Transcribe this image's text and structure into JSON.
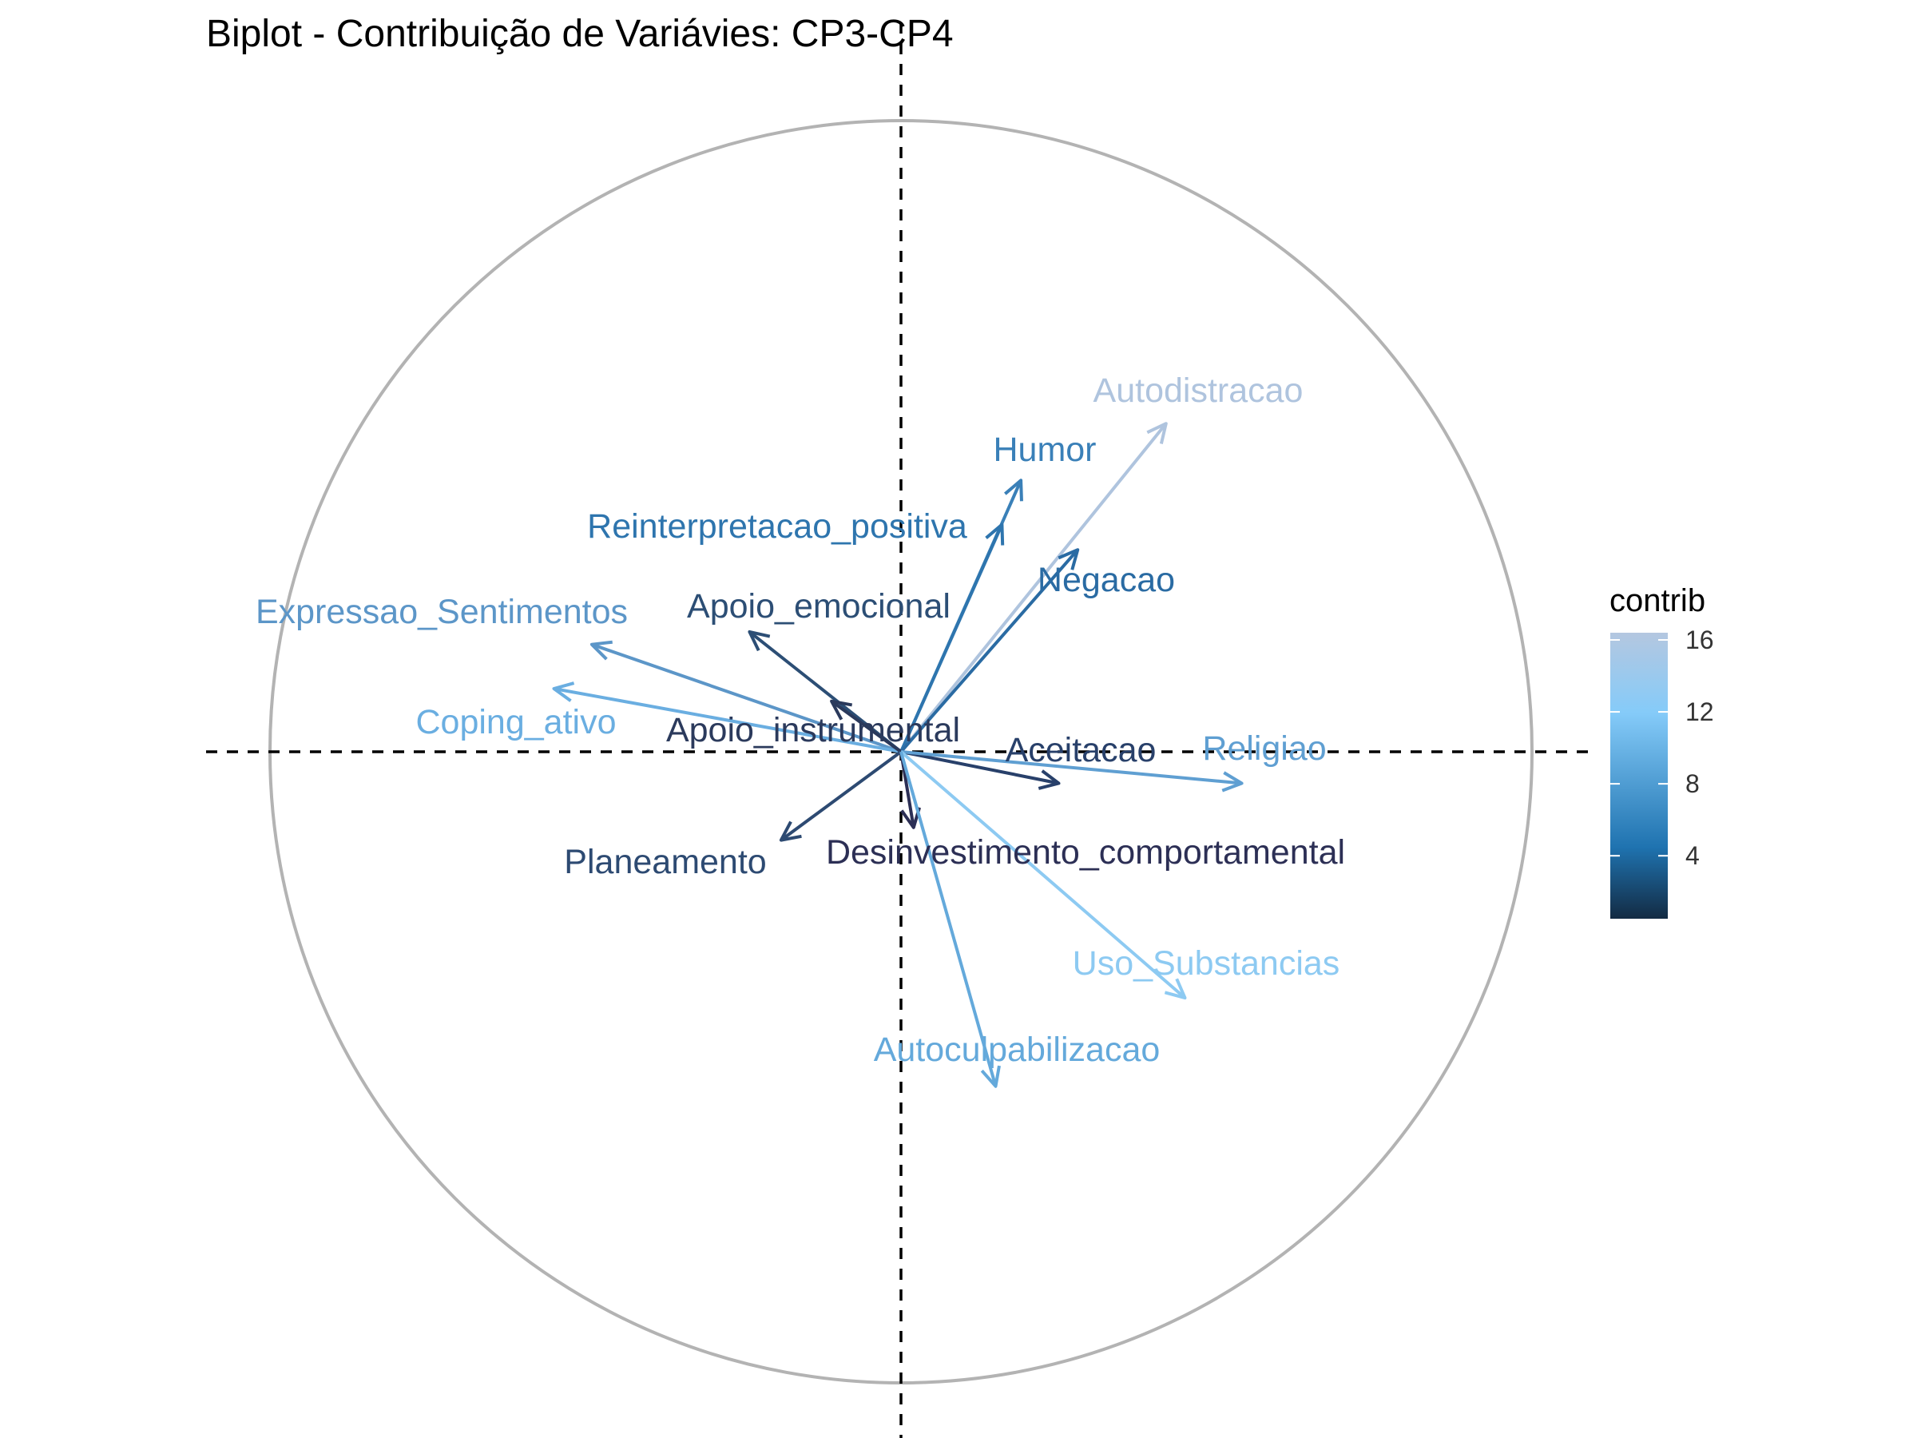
{
  "chart_data": {
    "type": "biplot",
    "title": "Biplot - Contribuição de Variávies: CP3-CP4",
    "xlabel": "",
    "ylabel": "",
    "xlim": [
      -1.1,
      1.1
    ],
    "ylim": [
      -1.1,
      1.1
    ],
    "grid": false,
    "circle": {
      "radius": 1.0,
      "color": "#b3b3b3"
    },
    "reference_lines": {
      "x": 0,
      "y": 0,
      "style": "dashed",
      "color": "#000000"
    },
    "legend": {
      "title": "contrib",
      "position": "right",
      "ticks": [
        "4",
        "8",
        "12",
        "16"
      ],
      "tick_values": [
        4,
        8,
        12,
        16
      ],
      "range": [
        0.5,
        16.4
      ],
      "colors": [
        "#132B43",
        "#1f73b0",
        "#85cbf9",
        "#b4c7e0"
      ]
    },
    "variables": [
      {
        "name": "Autodistracao",
        "x": 0.42,
        "y": 0.52,
        "contrib": 16.3,
        "color": "#afc4de"
      },
      {
        "name": "Humor",
        "x": 0.19,
        "y": 0.43,
        "contrib": 6.4,
        "color": "#3a80b8"
      },
      {
        "name": "Reinterpretacao_positiva",
        "x": 0.16,
        "y": 0.36,
        "contrib": 5.6,
        "color": "#2e75ae"
      },
      {
        "name": "Negacao",
        "x": 0.28,
        "y": 0.32,
        "contrib": 5.0,
        "color": "#2a6ba3"
      },
      {
        "name": "Apoio_emocional",
        "x": -0.24,
        "y": 0.19,
        "contrib": 2.6,
        "color": "#2c4e75"
      },
      {
        "name": "Expressao_Sentimentos",
        "x": -0.49,
        "y": 0.17,
        "contrib": 8.3,
        "color": "#5c96c8"
      },
      {
        "name": "Coping_ativo",
        "x": -0.55,
        "y": 0.1,
        "contrib": 11.0,
        "color": "#6aaee1"
      },
      {
        "name": "Apoio_instrumental",
        "x": -0.11,
        "y": 0.08,
        "contrib": 0.9,
        "color": "#2b3a5c"
      },
      {
        "name": "Aceitacao",
        "x": 0.25,
        "y": -0.05,
        "contrib": 1.8,
        "color": "#28406a"
      },
      {
        "name": "Religiao",
        "x": 0.54,
        "y": -0.05,
        "contrib": 9.2,
        "color": "#5f9fd2"
      },
      {
        "name": "Planeamento",
        "x": -0.19,
        "y": -0.14,
        "contrib": 1.6,
        "color": "#2d4a72"
      },
      {
        "name": "Desinvestimento_comportamental",
        "x": 0.02,
        "y": -0.12,
        "contrib": 0.6,
        "color": "#2c2f55"
      },
      {
        "name": "Uso_Substancias",
        "x": 0.45,
        "y": -0.39,
        "contrib": 13.0,
        "color": "#8dcaf2"
      },
      {
        "name": "Autoculpabilizacao",
        "x": 0.15,
        "y": -0.53,
        "contrib": 10.5,
        "color": "#64a9db"
      }
    ]
  }
}
